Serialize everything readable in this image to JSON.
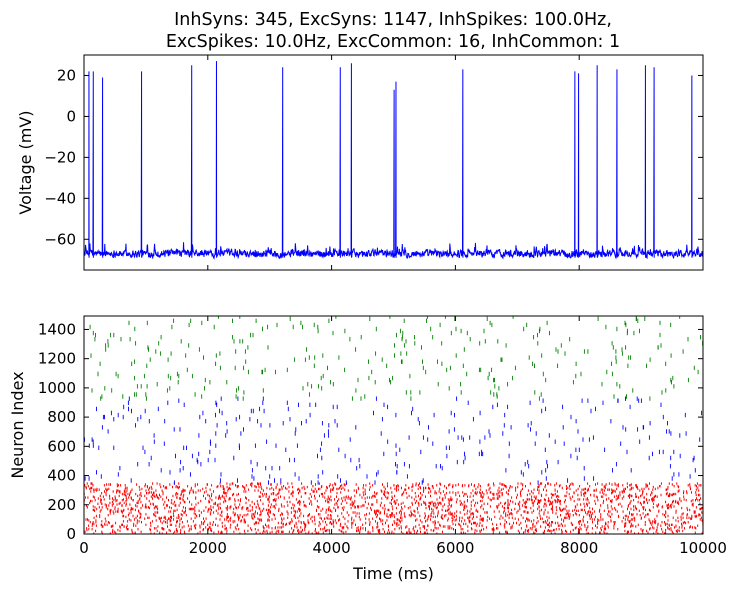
{
  "title_line1": "InhSyns: 345, ExcSyns: 1147, InhSpikes: 100.0Hz,",
  "title_line2": "ExcSpikes: 10.0Hz, ExcCommon: 16, InhCommon: 1",
  "chart_data": [
    {
      "type": "line",
      "name": "voltage-trace",
      "ylabel": "Voltage (mV)",
      "xlabel": "",
      "xlim": [
        0,
        10000
      ],
      "ylim": [
        -75,
        30
      ],
      "yticks": [
        20,
        0,
        -20,
        -40,
        -60
      ],
      "ytick_labels": [
        "20",
        "0",
        "−20",
        "−40",
        "−60"
      ],
      "color": "#0000ff",
      "baseline_mV": -67,
      "spike_times_ms": [
        80,
        150,
        300,
        930,
        1740,
        2140,
        3210,
        4140,
        4320,
        5010,
        5040,
        6120,
        7930,
        7990,
        8290,
        8610,
        9070,
        9210,
        9820
      ],
      "spike_peaks_mV": [
        22,
        22,
        19,
        22,
        25,
        27,
        24,
        24,
        26,
        13,
        17,
        23,
        22,
        21,
        25,
        23,
        25,
        24,
        20
      ]
    },
    {
      "type": "scatter",
      "name": "raster",
      "ylabel": "Neuron Index",
      "xlabel": "Time (ms)",
      "xlim": [
        0,
        10000
      ],
      "ylim": [
        0,
        1492
      ],
      "xticks": [
        0,
        2000,
        4000,
        6000,
        8000,
        10000
      ],
      "xtick_labels": [
        "0",
        "2000",
        "4000",
        "6000",
        "8000",
        "10000"
      ],
      "yticks": [
        0,
        200,
        400,
        600,
        800,
        1000,
        1200,
        1400
      ],
      "ytick_labels": [
        "0",
        "200",
        "400",
        "600",
        "800",
        "1000",
        "1200",
        "1400"
      ],
      "series": [
        {
          "name": "Inhibitory",
          "index_range": [
            0,
            345
          ],
          "rate_hz": 100.0,
          "color": "#ff0000"
        },
        {
          "name": "Excitatory (blue)",
          "index_range": [
            345,
            920
          ],
          "rate_hz": 10.0,
          "color": "#0000ff"
        },
        {
          "name": "Excitatory (green)",
          "index_range": [
            920,
            1492
          ],
          "rate_hz": 10.0,
          "color": "#008000"
        }
      ]
    }
  ]
}
